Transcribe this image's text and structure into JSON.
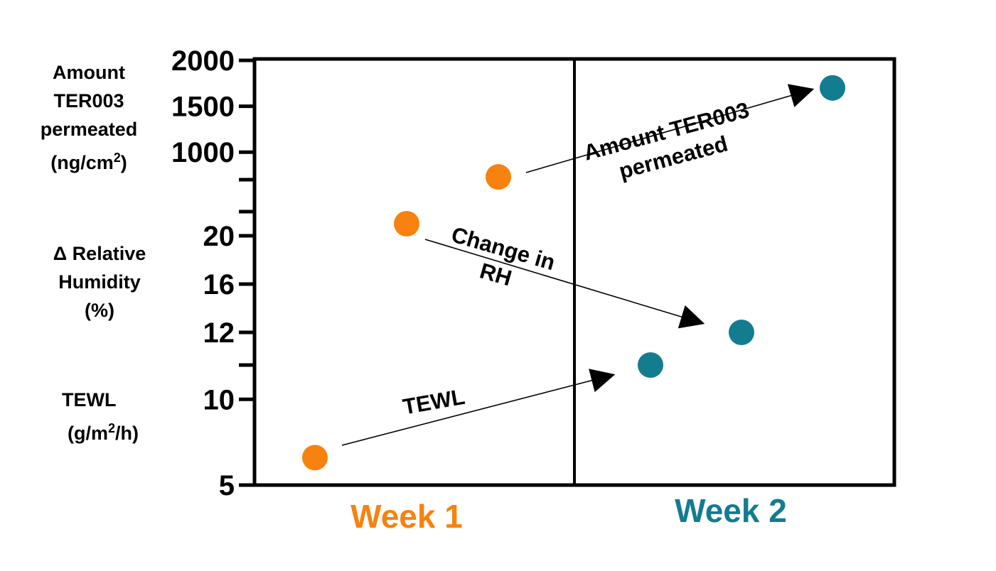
{
  "chart_data": {
    "type": "scatter",
    "x_categories": [
      "Week 1",
      "Week 2"
    ],
    "colors": {
      "week1": "#F7820F",
      "week2": "#137C8F",
      "axis": "#000000"
    },
    "panels": [
      {
        "id": "amount",
        "ylabel_lines": [
          "Amount",
          "TER003",
          "permeated"
        ],
        "ylabel_unit_prefix": "(ng/cm",
        "ylabel_unit_sup": "2",
        "ylabel_unit_suffix": ")",
        "ylim": [
          700,
          2000
        ],
        "ticks": [
          1000,
          1500,
          2000
        ],
        "tick_labels": [
          "1000",
          "1500",
          "2000"
        ],
        "points": [
          {
            "week": "Week 1",
            "y": 730
          },
          {
            "week": "Week 2",
            "y": 1700
          }
        ]
      },
      {
        "id": "rh",
        "ylabel_lines": [
          "Δ Relative",
          "Humidity",
          "(%)"
        ],
        "ylim": [
          12,
          22
        ],
        "ticks": [
          12,
          16,
          20
        ],
        "tick_labels": [
          "12",
          "16",
          "20"
        ],
        "points": [
          {
            "week": "Week 1",
            "y": 21
          },
          {
            "week": "Week 2",
            "y": 12
          }
        ]
      },
      {
        "id": "tewl",
        "ylabel_lines": [
          "TEWL"
        ],
        "ylabel_unit_prefix": "(g/m",
        "ylabel_unit_sup": "2",
        "ylabel_unit_suffix": "/h)",
        "ylim": [
          5,
          12
        ],
        "ticks": [
          5,
          10
        ],
        "tick_labels": [
          "5",
          "10"
        ],
        "points": [
          {
            "week": "Week 1",
            "y": 6.6
          },
          {
            "week": "Week 2",
            "y": 12
          }
        ]
      }
    ],
    "annotations": [
      {
        "id": "amount-arrow",
        "lines": [
          "Amount TER003",
          "permeated"
        ]
      },
      {
        "id": "rh-arrow",
        "lines": [
          "Change in",
          "RH"
        ]
      },
      {
        "id": "tewl-arrow",
        "lines": [
          "TEWL"
        ]
      }
    ]
  }
}
